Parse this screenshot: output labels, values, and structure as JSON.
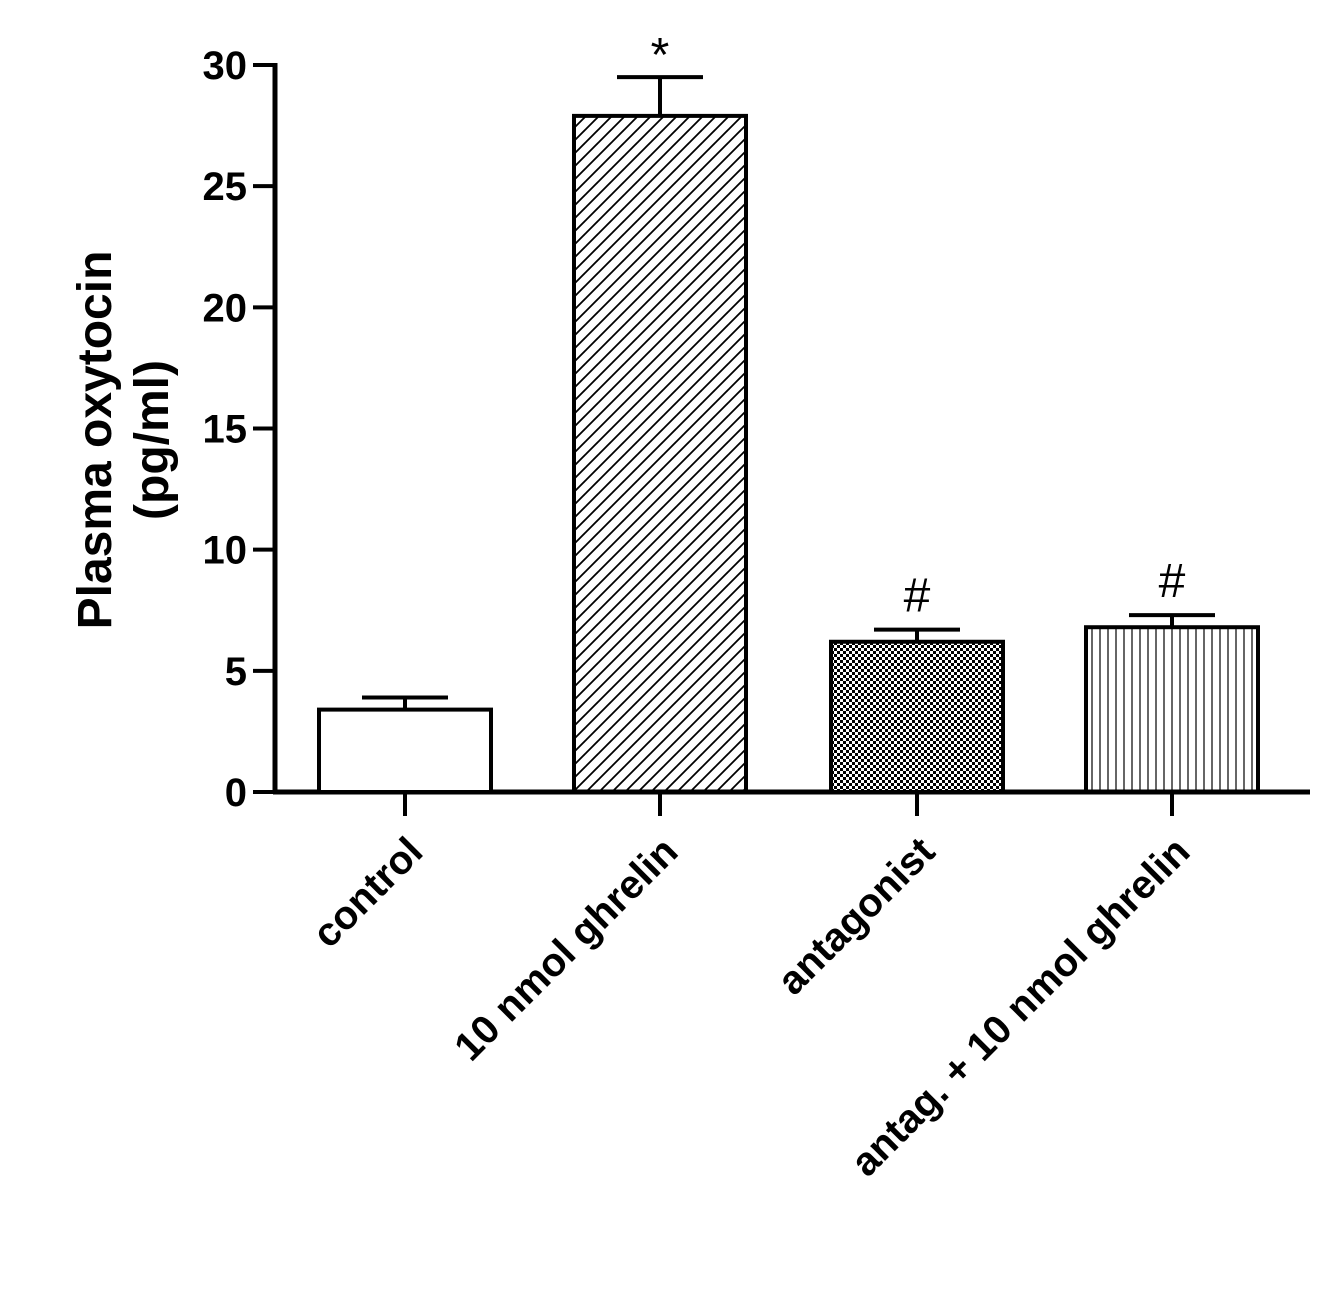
{
  "chart_data": {
    "type": "bar",
    "title": "",
    "ylabel_line1": "Plasma oxytocin",
    "ylabel_line2": "(pg/ml)",
    "xlabel": "",
    "ylim": [
      0,
      30
    ],
    "yticks": [
      0,
      5,
      10,
      15,
      20,
      25,
      30
    ],
    "ytick_labels": [
      "0",
      "5",
      "10",
      "15",
      "20",
      "25",
      "30"
    ],
    "grid": false,
    "legend": "none",
    "categories": [
      "control",
      "10 nmol ghrelin",
      "antagonist",
      "antag. + 10 nmol ghrelin"
    ],
    "values": [
      3.4,
      27.9,
      6.2,
      6.8
    ],
    "errors": [
      0.5,
      1.6,
      0.5,
      0.5
    ],
    "annotations": [
      "",
      "*",
      "#",
      "#"
    ],
    "patterns": [
      "none",
      "diagonal",
      "checker",
      "vertical"
    ],
    "colors": {
      "ink": "#000000",
      "background": "#ffffff"
    }
  }
}
